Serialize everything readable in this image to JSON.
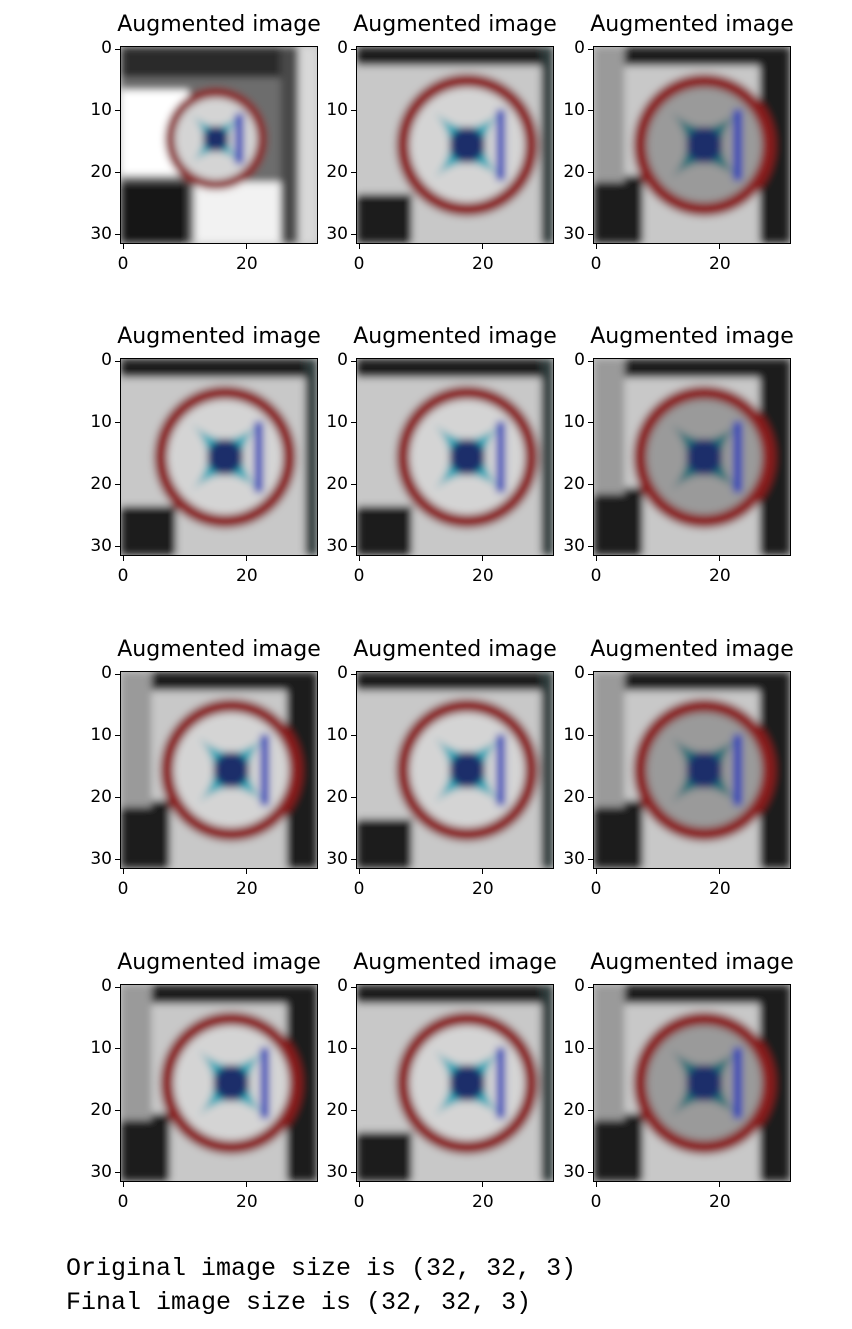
{
  "figure": {
    "panel_title": "Augmented image",
    "y_tick_labels": [
      "0",
      "10",
      "20",
      "30"
    ],
    "x_tick_labels": [
      "0",
      "20"
    ],
    "rows": 4,
    "cols": 3,
    "panels": [
      {
        "variant": "bright-corner"
      },
      {
        "variant": "light"
      },
      {
        "variant": "dark"
      },
      {
        "variant": "light-shifted"
      },
      {
        "variant": "light"
      },
      {
        "variant": "dark"
      },
      {
        "variant": "blurred"
      },
      {
        "variant": "light"
      },
      {
        "variant": "dark"
      },
      {
        "variant": "blurred"
      },
      {
        "variant": "light"
      },
      {
        "variant": "dark-blurred"
      }
    ]
  },
  "output": {
    "line1": "Original image size is (32, 32, 3)",
    "line2": "Final image size is (32, 32, 3)"
  },
  "colors": {
    "sign_ring": "#8a1f1a",
    "sign_symbol": "#2aa8b8",
    "sign_center": "#1f2f6a",
    "background_light": "#c8c8c8",
    "background_dark": "#1a1a1a"
  }
}
